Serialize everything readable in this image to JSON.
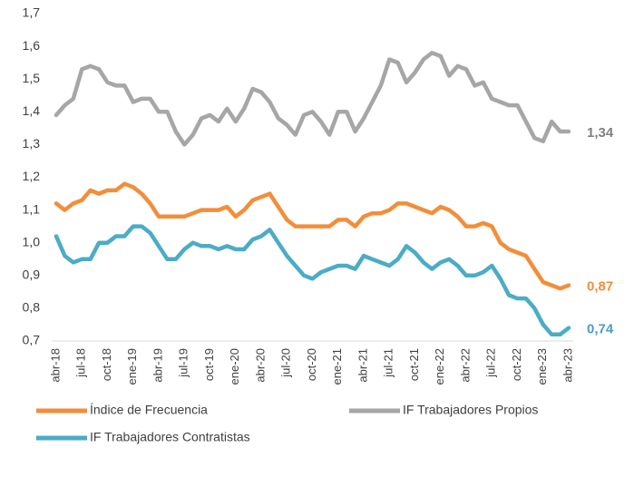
{
  "chart_data": {
    "type": "line",
    "categories": [
      "abr-18",
      null,
      null,
      "jul-18",
      null,
      null,
      "oct-18",
      null,
      null,
      "ene-19",
      null,
      null,
      "abr-19",
      null,
      null,
      "jul-19",
      null,
      null,
      "oct-19",
      null,
      null,
      "ene-20",
      null,
      null,
      "abr-20",
      null,
      null,
      "jul-20",
      null,
      null,
      "oct-20",
      null,
      null,
      "ene-21",
      null,
      null,
      "abr-21",
      null,
      null,
      "jul-21",
      null,
      null,
      "oct-21",
      null,
      null,
      "ene-22",
      null,
      null,
      "abr-22",
      null,
      null,
      "jul-22",
      null,
      null,
      "oct-22",
      null,
      null,
      "ene-23",
      null,
      null,
      "abr-23"
    ],
    "ylim": [
      0.7,
      1.7
    ],
    "yticks": [
      {
        "value": 0.7,
        "label": "0,7"
      },
      {
        "value": 0.8,
        "label": "0,8"
      },
      {
        "value": 0.9,
        "label": "0,9"
      },
      {
        "value": 1.0,
        "label": "1,0"
      },
      {
        "value": 1.1,
        "label": "1,1"
      },
      {
        "value": 1.2,
        "label": "1,2"
      },
      {
        "value": 1.3,
        "label": "1,3"
      },
      {
        "value": 1.4,
        "label": "1,4"
      },
      {
        "value": 1.5,
        "label": "1,5"
      },
      {
        "value": 1.6,
        "label": "1,6"
      },
      {
        "value": 1.7,
        "label": "1,7"
      }
    ],
    "grid": false,
    "series": [
      {
        "name": "Índice de Frecuencia",
        "color": "#f28e3a",
        "label_color": "#f28e3a",
        "values": [
          1.12,
          1.1,
          1.12,
          1.13,
          1.16,
          1.15,
          1.16,
          1.16,
          1.18,
          1.17,
          1.15,
          1.12,
          1.08,
          1.08,
          1.08,
          1.08,
          1.09,
          1.1,
          1.1,
          1.1,
          1.11,
          1.08,
          1.1,
          1.13,
          1.14,
          1.15,
          1.11,
          1.07,
          1.05,
          1.05,
          1.05,
          1.05,
          1.05,
          1.07,
          1.07,
          1.05,
          1.08,
          1.09,
          1.09,
          1.1,
          1.12,
          1.12,
          1.11,
          1.1,
          1.09,
          1.11,
          1.1,
          1.08,
          1.05,
          1.05,
          1.06,
          1.05,
          1.0,
          0.98,
          0.97,
          0.96,
          0.92,
          0.88,
          0.87,
          0.86,
          0.87
        ],
        "value_labels": [
          null,
          null,
          null,
          null,
          null,
          null,
          null,
          null,
          null,
          null,
          null,
          null,
          null,
          null,
          null,
          null,
          null,
          null,
          null,
          null,
          null,
          null,
          null,
          null,
          null,
          null,
          null,
          null,
          null,
          null,
          null,
          null,
          null,
          null,
          null,
          null,
          null,
          null,
          null,
          null,
          null,
          null,
          null,
          null,
          null,
          null,
          null,
          null,
          null,
          null,
          null,
          null,
          null,
          null,
          null,
          null,
          null,
          null,
          null,
          null,
          "0,87"
        ]
      },
      {
        "name": "IF Trabajadores Propios",
        "color": "#a6a6a6",
        "label_color": "#7f7f7f",
        "values": [
          1.39,
          1.42,
          1.44,
          1.53,
          1.54,
          1.53,
          1.49,
          1.48,
          1.48,
          1.43,
          1.44,
          1.44,
          1.4,
          1.4,
          1.34,
          1.3,
          1.33,
          1.38,
          1.39,
          1.37,
          1.41,
          1.37,
          1.41,
          1.47,
          1.46,
          1.43,
          1.38,
          1.36,
          1.33,
          1.39,
          1.4,
          1.37,
          1.33,
          1.4,
          1.4,
          1.34,
          1.38,
          1.43,
          1.48,
          1.56,
          1.55,
          1.49,
          1.52,
          1.56,
          1.58,
          1.57,
          1.51,
          1.54,
          1.53,
          1.48,
          1.49,
          1.44,
          1.43,
          1.42,
          1.42,
          1.37,
          1.32,
          1.31,
          1.37,
          1.34,
          1.34
        ],
        "value_labels": [
          null,
          null,
          null,
          null,
          null,
          null,
          null,
          null,
          null,
          null,
          null,
          null,
          null,
          null,
          null,
          null,
          null,
          null,
          null,
          null,
          null,
          null,
          null,
          null,
          null,
          null,
          null,
          null,
          null,
          null,
          null,
          null,
          null,
          null,
          null,
          null,
          null,
          null,
          null,
          null,
          null,
          null,
          null,
          null,
          null,
          null,
          null,
          null,
          null,
          null,
          null,
          null,
          null,
          null,
          null,
          null,
          null,
          null,
          null,
          null,
          "1,34"
        ]
      },
      {
        "name": "IF Trabajadores Contratistas",
        "color": "#4bacc6",
        "label_color": "#4b9cc6",
        "values": [
          1.02,
          0.96,
          0.94,
          0.95,
          0.95,
          1.0,
          1.0,
          1.02,
          1.02,
          1.05,
          1.05,
          1.03,
          0.99,
          0.95,
          0.95,
          0.98,
          1.0,
          0.99,
          0.99,
          0.98,
          0.99,
          0.98,
          0.98,
          1.01,
          1.02,
          1.04,
          1.0,
          0.96,
          0.93,
          0.9,
          0.89,
          0.91,
          0.92,
          0.93,
          0.93,
          0.92,
          0.96,
          0.95,
          0.94,
          0.93,
          0.95,
          0.99,
          0.97,
          0.94,
          0.92,
          0.94,
          0.95,
          0.93,
          0.9,
          0.9,
          0.91,
          0.93,
          0.89,
          0.84,
          0.83,
          0.83,
          0.8,
          0.75,
          0.72,
          0.72,
          0.74
        ],
        "value_labels": [
          null,
          null,
          null,
          null,
          null,
          null,
          null,
          null,
          null,
          null,
          null,
          null,
          null,
          null,
          null,
          null,
          null,
          null,
          null,
          null,
          null,
          null,
          null,
          null,
          null,
          null,
          null,
          null,
          null,
          null,
          null,
          null,
          null,
          null,
          null,
          null,
          null,
          null,
          null,
          null,
          null,
          null,
          null,
          null,
          null,
          null,
          null,
          null,
          null,
          null,
          null,
          null,
          null,
          null,
          null,
          null,
          null,
          null,
          null,
          null,
          "0,74"
        ]
      }
    ]
  }
}
